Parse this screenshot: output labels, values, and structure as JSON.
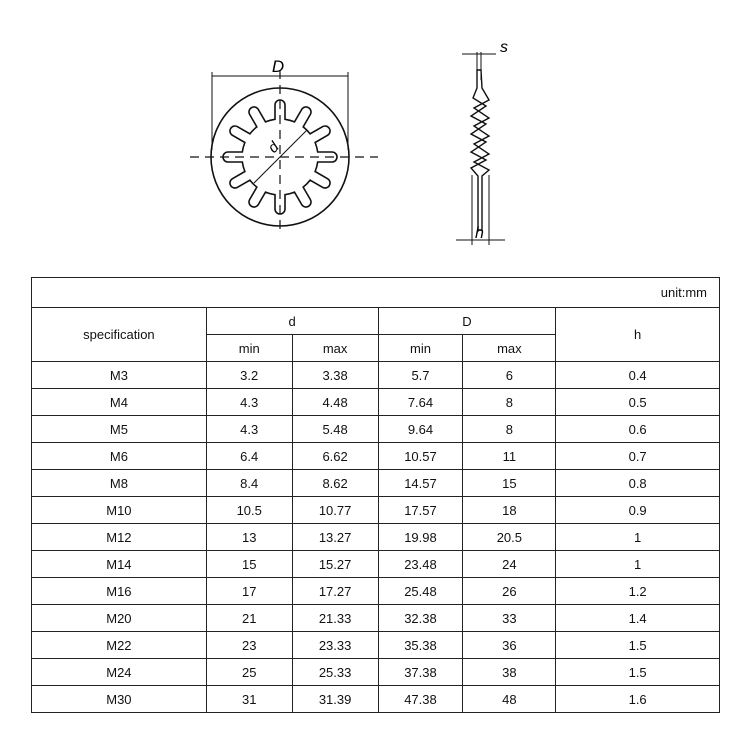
{
  "drawing": {
    "front_view_label_D": "D",
    "front_view_label_d": "d",
    "side_view_label_s": "s",
    "side_view_label_h": "h",
    "tooth_count": 12
  },
  "table": {
    "unit": "unit:mm",
    "headers": {
      "specification": "specification",
      "d": "d",
      "D": "D",
      "h": "h",
      "min": "min",
      "max": "max"
    },
    "rows": [
      [
        "M3",
        "3.2",
        "3.38",
        "5.7",
        "6",
        "0.4"
      ],
      [
        "M4",
        "4.3",
        "4.48",
        "7.64",
        "8",
        "0.5"
      ],
      [
        "M5",
        "4.3",
        "5.48",
        "9.64",
        "8",
        "0.6"
      ],
      [
        "M6",
        "6.4",
        "6.62",
        "10.57",
        "11",
        "0.7"
      ],
      [
        "M8",
        "8.4",
        "8.62",
        "14.57",
        "15",
        "0.8"
      ],
      [
        "M10",
        "10.5",
        "10.77",
        "17.57",
        "18",
        "0.9"
      ],
      [
        "M12",
        "13",
        "13.27",
        "19.98",
        "20.5",
        "1"
      ],
      [
        "M14",
        "15",
        "15.27",
        "23.48",
        "24",
        "1"
      ],
      [
        "M16",
        "17",
        "17.27",
        "25.48",
        "26",
        "1.2"
      ],
      [
        "M20",
        "21",
        "21.33",
        "32.38",
        "33",
        "1.4"
      ],
      [
        "M22",
        "23",
        "23.33",
        "35.38",
        "36",
        "1.5"
      ],
      [
        "M24",
        "25",
        "25.33",
        "37.38",
        "38",
        "1.5"
      ],
      [
        "M30",
        "31",
        "31.39",
        "47.38",
        "48",
        "1.6"
      ]
    ]
  }
}
